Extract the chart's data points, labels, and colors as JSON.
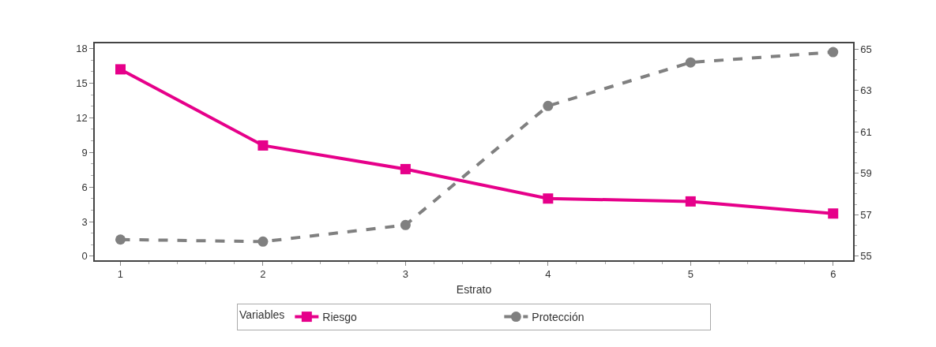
{
  "chart_data": {
    "type": "line",
    "xlabel": "Estrato",
    "legend_title": "Variables",
    "x": [
      1,
      2,
      3,
      4,
      5,
      6
    ],
    "series": [
      {
        "name": "Riesgo",
        "color": "#e6008a",
        "values": [
          16.2,
          9.6,
          7.55,
          5.0,
          4.75,
          3.7
        ],
        "marker": "square",
        "line_style": "solid"
      },
      {
        "name": "Protección",
        "color": "#808080",
        "values": [
          55.8,
          55.7,
          56.5,
          62.25,
          64.35,
          64.85
        ],
        "marker": "circle",
        "line_style": "dashed",
        "axis": "y2"
      }
    ],
    "xlim": [
      0.82,
      6.14
    ],
    "xticks": [
      1,
      2,
      3,
      4,
      5,
      6
    ],
    "ylim": [
      -0.35,
      18.45
    ],
    "yticks": [
      0,
      3,
      6,
      9,
      12,
      15,
      18
    ],
    "y2lim": [
      54.8,
      65.27
    ],
    "y2ticks": [
      55,
      57,
      59,
      61,
      63,
      65
    ],
    "legend": "bottom"
  }
}
